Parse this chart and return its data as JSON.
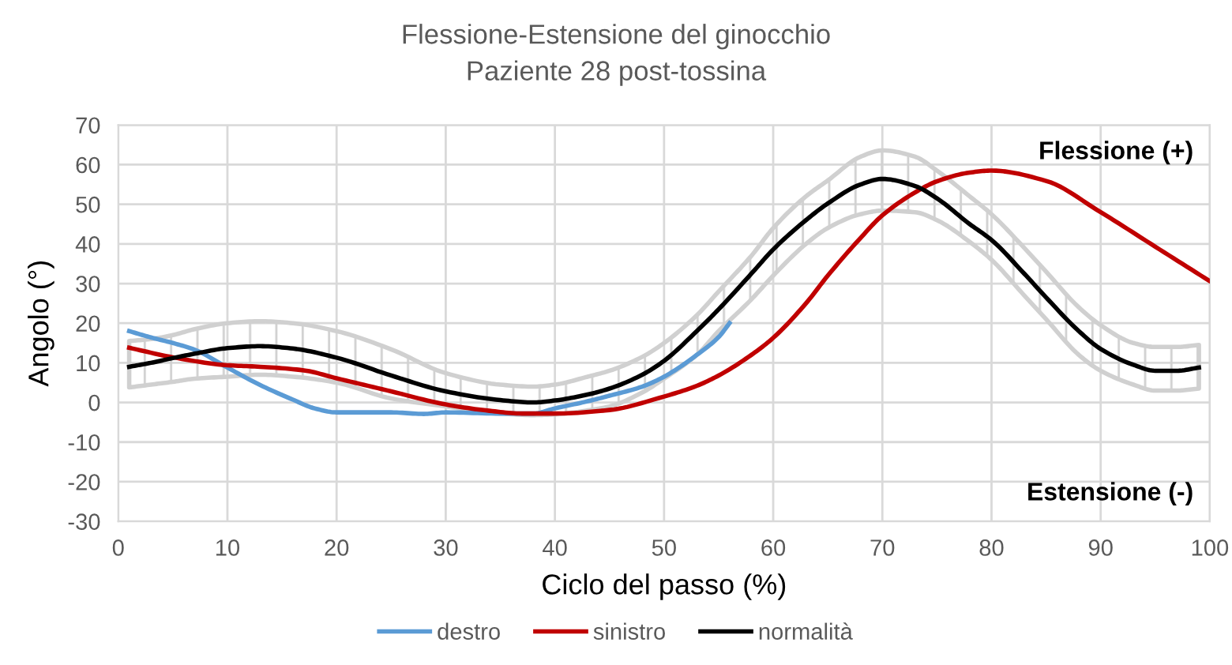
{
  "chart_data": {
    "type": "line",
    "title": "Flessione-Estensione del ginocchio",
    "subtitle": "Paziente 28 post-tossina",
    "xlabel": "Ciclo del passo (%)",
    "ylabel": "Angolo (°)",
    "annotations": [
      "Flessione (+)",
      "Estensione (-)"
    ],
    "xlim": [
      0,
      100
    ],
    "xticks": [
      0,
      10,
      20,
      30,
      40,
      50,
      60,
      70,
      80,
      90,
      100
    ],
    "ylim": [
      -30,
      70
    ],
    "yticks": [
      -30,
      -20,
      -10,
      0,
      10,
      20,
      30,
      40,
      50,
      60,
      70
    ],
    "grid": true,
    "legend": "bottom",
    "marker": "none",
    "line_style": "solid",
    "series": [
      {
        "name": "destro",
        "color": "#5b9bd5",
        "x": [
          1,
          3,
          5,
          7,
          10,
          13,
          16,
          18,
          20,
          25,
          28,
          30,
          35,
          38,
          40,
          43,
          45,
          48,
          50,
          53,
          55,
          56
        ],
        "values": [
          18,
          16.4,
          15,
          13.3,
          8.8,
          4.4,
          0.7,
          -1.5,
          -2.5,
          -2.5,
          -2.9,
          -2.5,
          -2.8,
          -2.8,
          -1.5,
          0.3,
          1.7,
          4,
          6.5,
          12,
          16.5,
          20
        ]
      },
      {
        "name": "sinistro",
        "color": "#c00000",
        "x": [
          1,
          5,
          10,
          13,
          17,
          20,
          25,
          30,
          34,
          37,
          40,
          45,
          50,
          53,
          55,
          58,
          60,
          63,
          65,
          68,
          70,
          73,
          75,
          78,
          80,
          85,
          90,
          95,
          100
        ],
        "values": [
          13.8,
          11.4,
          9.4,
          9,
          8.1,
          6.1,
          2.8,
          -0.5,
          -2.1,
          -2.8,
          -2.8,
          -1.9,
          1.5,
          4.2,
          6.8,
          12,
          16.3,
          25,
          32,
          41.5,
          47.2,
          53,
          55.8,
          58,
          58.5,
          55.9,
          48,
          39.3,
          30.6
        ]
      },
      {
        "name": "normalità",
        "color": "#000000",
        "x": [
          1,
          3,
          5,
          7,
          10,
          13,
          16,
          20,
          25,
          30,
          35,
          38,
          40,
          43,
          45,
          48,
          50,
          53,
          55,
          58,
          60,
          63,
          65,
          68,
          70,
          73,
          75,
          78,
          80,
          83,
          85,
          88,
          90,
          93,
          95,
          97,
          99
        ],
        "values": [
          9,
          10,
          11.2,
          12.3,
          13.7,
          14.2,
          13.6,
          11.3,
          6.8,
          2.8,
          0.6,
          0,
          0.5,
          2,
          3.5,
          7,
          10.5,
          18,
          23.5,
          32.5,
          38.6,
          46,
          50.2,
          55,
          56.4,
          54.6,
          51.5,
          45,
          41,
          32.5,
          26.5,
          18,
          13.5,
          9.5,
          8,
          8,
          8.8
        ],
        "upper": [
          15.5,
          16,
          17,
          18.5,
          20,
          20.5,
          20,
          18,
          13.4,
          7.4,
          4.5,
          4,
          4.5,
          6.5,
          8,
          11.5,
          15,
          22,
          28,
          37,
          44,
          52,
          56,
          62,
          63.6,
          62,
          58.5,
          52,
          47.5,
          39,
          33,
          24,
          19.5,
          15,
          14,
          14,
          14.5
        ],
        "lower": [
          3.8,
          4.5,
          5.2,
          6,
          6.5,
          7,
          6.5,
          5,
          1,
          -1,
          -2.8,
          -3.2,
          -3,
          -2,
          -1,
          2.5,
          6,
          12,
          18,
          26,
          32,
          40,
          44,
          47.5,
          48.4,
          48,
          46,
          40.5,
          36,
          27,
          21,
          12,
          8,
          4.5,
          3,
          3,
          3.5
        ]
      }
    ]
  }
}
